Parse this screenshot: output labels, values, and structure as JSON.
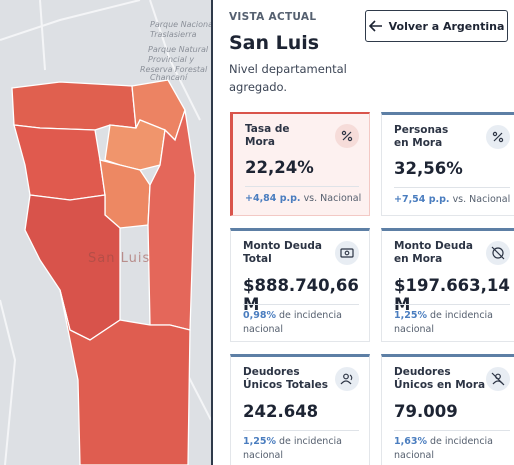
{
  "map": {
    "labels": [
      "Parque Nacional",
      "Traslasierra",
      "Parque Natural",
      "Provincial y",
      "Reserva Forestal",
      "Chancaní",
      "San Luis"
    ]
  },
  "header": {
    "eyebrow": "VISTA ACTUAL",
    "title": "San Luis",
    "subtitle": "Nivel departamental agregado.",
    "back_button": "Volver a Argentina"
  },
  "cards": [
    {
      "title": [
        "Tasa de",
        "Mora"
      ],
      "value": "22,24%",
      "highlight": "+4,84 p.p.",
      "note": "vs. Nacional"
    },
    {
      "title": [
        "Personas",
        "en Mora"
      ],
      "value": "32,56%",
      "highlight": "+7,54 p.p.",
      "note": "vs. Nacional"
    },
    {
      "title": [
        "Monto Deuda",
        "Total"
      ],
      "value": "$888.740,66 M",
      "highlight": "0,98%",
      "note": "de incidencia nacional"
    },
    {
      "title": [
        "Monto Deuda",
        "en Mora"
      ],
      "value": "$197.663,14 M",
      "highlight": "1,25%",
      "note": "de incidencia nacional"
    },
    {
      "title": [
        "Deudores",
        "Únicos Totales"
      ],
      "value": "242.648",
      "highlight": "1,25%",
      "note": "de incidencia nacional"
    },
    {
      "title": [
        "Deudores",
        "Únicos en Mora"
      ],
      "value": "79.009",
      "highlight": "1,63%",
      "note": "de incidencia nacional"
    }
  ]
}
